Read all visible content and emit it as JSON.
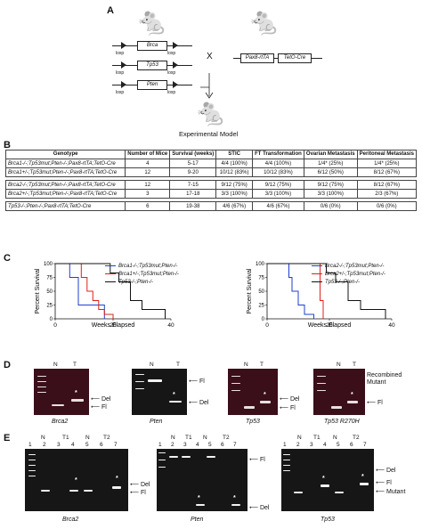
{
  "panelA": {
    "label": "A",
    "constructs": [
      {
        "gene": "Brca"
      },
      {
        "gene": "Tp53"
      },
      {
        "gene": "Pten"
      }
    ],
    "loxp": "loxp",
    "cross": "X",
    "right_construct": [
      "Pax8-rtTA",
      "TetO-Cre"
    ],
    "model_label": "Experimental Model"
  },
  "panelB": {
    "label": "B",
    "headers": [
      "Genotype",
      "Number of Mice",
      "Survival (weeks)",
      "STIC",
      "FT Transformation",
      "Ovarian Metastasis",
      "Peritoneal Metastasis"
    ],
    "rows": [
      [
        "Brca1-/-;Tp53mut;Pten-/-;Pax8-rtTA;TetO-Cre",
        "4",
        "5-17",
        "4/4 (100%)",
        "4/4 (100%)",
        "1/4* (25%)",
        "1/4* (25%)"
      ],
      [
        "Brca1+/-;Tp53mut;Pten-/-;Pax8-rtTA;TetO-Cre",
        "12",
        "9-20",
        "10/12 (83%)",
        "10/12 (83%)",
        "6/12 (50%)",
        "8/12 (67%)"
      ],
      [
        "Brca2-/-;Tp53mut;Pten-/-;Pax8-rtTA;TetO-Cre",
        "12",
        "7-15",
        "9/12 (75%)",
        "9/12 (75%)",
        "9/12 (75%)",
        "8/12 (67%)"
      ],
      [
        "Brca2+/-;Tp53mut;Pten-/-;Pax8-rtTA;TetO-Cre",
        "3",
        "17-18",
        "3/3 (100%)",
        "3/3 (100%)",
        "3/3 (100%)",
        "2/3 (67%)"
      ],
      [
        "Tp53-/-;Pten-/-;Pax8-rtTA;TetO-Cre",
        "6",
        "19-38",
        "4/6 (67%)",
        "4/6 (67%)",
        "0/6 (0%)",
        "0/6 (0%)"
      ]
    ]
  },
  "panelC": {
    "label": "C",
    "ylabel": "Percent Survival",
    "xlabel": "Weeks Elapsed",
    "yticks": [
      "100",
      "75",
      "50",
      "25",
      "0"
    ],
    "xticks": [
      "0",
      "20",
      "40"
    ],
    "left_legend": [
      "Brca1-/-;Tp53mut;Pten-/-",
      "Brca1+/-;Tp53mut;Pten-/-",
      "Tp53-/-;Pten-/-"
    ],
    "right_legend": [
      "Brca2-/-;Tp53mut;Pten-/-",
      "Brca2+/-;Tp53mut;Pten-/-",
      "Tp53-/-;Pten-/-"
    ],
    "colors": {
      "blue": "#1f3fcf",
      "red": "#e0201a",
      "black": "#111111"
    }
  },
  "chart_data": [
    {
      "type": "line",
      "xlabel": "Weeks Elapsed",
      "ylabel": "Percent Survival",
      "xlim": [
        0,
        40
      ],
      "ylim": [
        0,
        100
      ],
      "series": [
        {
          "name": "Brca1-/-;Tp53mut;Pten-/-",
          "color": "#1f3fcf",
          "x": [
            0,
            5,
            5,
            8,
            8,
            17,
            17
          ],
          "y": [
            100,
            100,
            75,
            75,
            25,
            25,
            0
          ]
        },
        {
          "name": "Brca1+/-;Tp53mut;Pten-/-",
          "color": "#e0201a",
          "x": [
            0,
            9,
            9,
            11,
            11,
            13,
            13,
            15,
            15,
            17,
            17,
            20,
            20
          ],
          "y": [
            100,
            100,
            75,
            75,
            50,
            50,
            33,
            33,
            17,
            17,
            8,
            8,
            0
          ]
        },
        {
          "name": "Tp53-/-;Pten-/-",
          "color": "#111111",
          "x": [
            0,
            19,
            19,
            22,
            22,
            26,
            26,
            30,
            30,
            38,
            38
          ],
          "y": [
            100,
            100,
            83,
            83,
            67,
            67,
            33,
            33,
            17,
            17,
            0
          ]
        }
      ]
    },
    {
      "type": "line",
      "xlabel": "Weeks Elapsed",
      "ylabel": "Percent Survival",
      "xlim": [
        0,
        40
      ],
      "ylim": [
        0,
        100
      ],
      "series": [
        {
          "name": "Brca2-/-;Tp53mut;Pten-/-",
          "color": "#1f3fcf",
          "x": [
            0,
            7,
            7,
            8,
            8,
            10,
            10,
            12,
            12,
            15,
            15
          ],
          "y": [
            100,
            100,
            75,
            75,
            50,
            50,
            25,
            25,
            8,
            8,
            0
          ]
        },
        {
          "name": "Brca2+/-;Tp53mut;Pten-/-",
          "color": "#e0201a",
          "x": [
            0,
            17,
            17,
            18,
            18
          ],
          "y": [
            100,
            100,
            33,
            33,
            0
          ]
        },
        {
          "name": "Tp53-/-;Pten-/-",
          "color": "#111111",
          "x": [
            0,
            19,
            19,
            22,
            22,
            26,
            26,
            30,
            30,
            38,
            38
          ],
          "y": [
            100,
            100,
            83,
            83,
            67,
            67,
            33,
            33,
            17,
            17,
            0
          ]
        }
      ]
    }
  ],
  "panelD": {
    "label": "D",
    "gels": [
      {
        "title": "Brca2",
        "lanes": [
          "N",
          "T"
        ],
        "arrows": [
          "Del",
          "Fl"
        ]
      },
      {
        "title": "Pten",
        "lanes": [
          "N",
          "T"
        ],
        "arrows": [
          "Fl",
          "Del"
        ]
      },
      {
        "title": "Tp53",
        "lanes": [
          "N",
          "T"
        ],
        "arrows": [
          "Del",
          "Fl"
        ]
      },
      {
        "title": "Tp53 R270H",
        "lanes": [
          "N",
          "T"
        ],
        "arrows": [
          "Recombined Mutant",
          "Fl"
        ]
      }
    ],
    "star": "*"
  },
  "panelE": {
    "label": "E",
    "gels": [
      {
        "title": "Brca2",
        "lanes": [
          "1",
          "2",
          "3",
          "4",
          "5",
          "6",
          "7"
        ],
        "groups": [
          "N",
          "T1",
          "N",
          "T2"
        ],
        "arrows": [
          "Del",
          "Fl"
        ]
      },
      {
        "title": "Pten",
        "lanes": [
          "1",
          "2",
          "3",
          "4",
          "5",
          "6",
          "7"
        ],
        "groups": [
          "N",
          "T1",
          "N",
          "T2"
        ],
        "arrows": [
          "Fl",
          "Del"
        ]
      },
      {
        "title": "Tp53",
        "lanes": [
          "1",
          "2",
          "3",
          "4",
          "5",
          "6",
          "7"
        ],
        "groups": [
          "N",
          "T1",
          "N",
          "T2"
        ],
        "arrows": [
          "Del",
          "Fl",
          "Mutant"
        ]
      }
    ]
  }
}
